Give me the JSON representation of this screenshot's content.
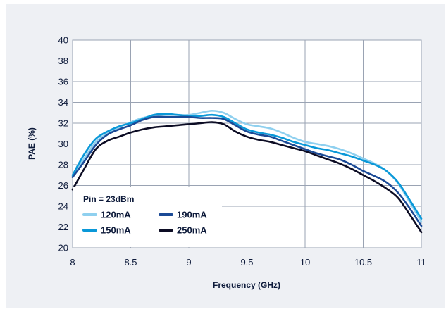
{
  "chart_data": {
    "type": "line",
    "xlabel": "Frequency (GHz)",
    "ylabel": "PAE (%)",
    "xlim": [
      8,
      11
    ],
    "ylim": [
      20,
      40
    ],
    "x_ticks": [
      "8",
      "8.5",
      "9",
      "9.5",
      "10",
      "10.5",
      "11"
    ],
    "y_ticks": [
      "20",
      "22",
      "24",
      "26",
      "28",
      "30",
      "32",
      "34",
      "36",
      "38",
      "40"
    ],
    "grid": true,
    "legend_placement": "lower-left",
    "legend_title": "Pin = 23dBm",
    "x": [
      8.0,
      8.1,
      8.2,
      8.3,
      8.4,
      8.5,
      8.6,
      8.7,
      8.8,
      8.9,
      9.0,
      9.1,
      9.2,
      9.3,
      9.4,
      9.5,
      9.6,
      9.7,
      9.8,
      9.9,
      10.0,
      10.1,
      10.2,
      10.3,
      10.4,
      10.5,
      10.6,
      10.7,
      10.8,
      10.9,
      11.0
    ],
    "series": [
      {
        "name": "120mA",
        "color": "#8fd0ef",
        "values": [
          26.9,
          28.6,
          30.2,
          31.0,
          31.6,
          32.1,
          32.5,
          32.7,
          32.8,
          32.8,
          32.8,
          33.0,
          33.2,
          33.0,
          32.4,
          31.9,
          31.7,
          31.5,
          31.1,
          30.6,
          30.2,
          30.0,
          29.8,
          29.5,
          29.1,
          28.6,
          28.1,
          27.4,
          26.2,
          24.4,
          22.5
        ]
      },
      {
        "name": "150mA",
        "color": "#0a98d8",
        "values": [
          27.0,
          29.0,
          30.5,
          31.2,
          31.7,
          32.0,
          32.4,
          32.8,
          32.9,
          32.8,
          32.7,
          32.7,
          32.8,
          32.6,
          32.0,
          31.4,
          31.1,
          30.9,
          30.6,
          30.2,
          29.9,
          29.6,
          29.4,
          29.1,
          28.8,
          28.4,
          28.0,
          27.4,
          26.3,
          24.6,
          22.8
        ]
      },
      {
        "name": "190mA",
        "color": "#1b4a96",
        "values": [
          26.8,
          28.3,
          29.9,
          30.9,
          31.4,
          31.8,
          32.3,
          32.6,
          32.6,
          32.6,
          32.6,
          32.5,
          32.5,
          32.4,
          31.8,
          31.2,
          30.9,
          30.7,
          30.3,
          29.9,
          29.5,
          29.1,
          28.8,
          28.5,
          28.0,
          27.4,
          26.9,
          26.3,
          25.3,
          23.8,
          22.1
        ]
      },
      {
        "name": "250mA",
        "color": "#0c0c24",
        "values": [
          25.6,
          27.6,
          29.5,
          30.3,
          30.7,
          31.1,
          31.4,
          31.6,
          31.7,
          31.8,
          31.9,
          32.0,
          32.1,
          31.9,
          31.2,
          30.7,
          30.4,
          30.2,
          29.9,
          29.6,
          29.3,
          28.9,
          28.5,
          28.1,
          27.6,
          27.0,
          26.4,
          25.7,
          24.8,
          23.2,
          21.5
        ]
      }
    ]
  }
}
